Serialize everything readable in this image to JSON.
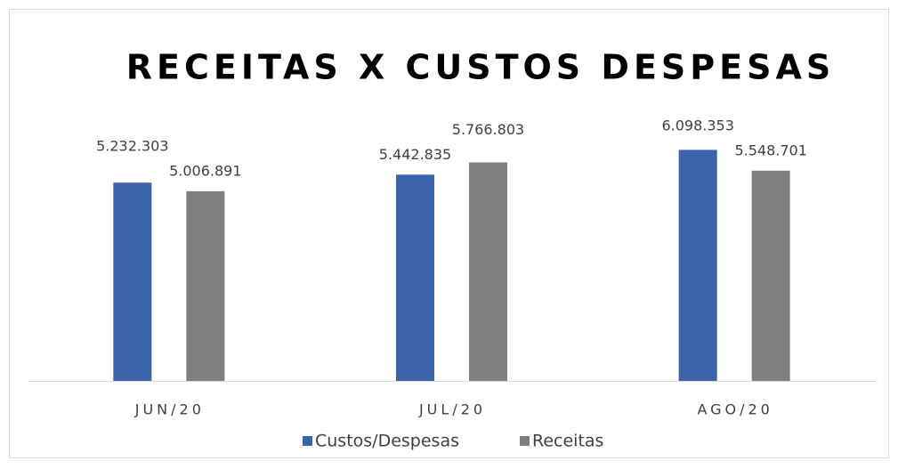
{
  "chart_data": {
    "type": "bar",
    "title": "RECEITAS X CUSTOS DESPESAS",
    "categories": [
      "JUN/20",
      "JUL/20",
      "AGO/20"
    ],
    "series": [
      {
        "name": "Custos/Despesas",
        "color": "#3c64ad",
        "values": [
          5232303,
          5442835,
          6098353
        ],
        "value_labels": [
          "5.232.303",
          "5.442.835",
          "6.098.353"
        ]
      },
      {
        "name": "Receitas",
        "color": "#7f7f7f",
        "values": [
          5006891,
          5766803,
          5548701
        ],
        "value_labels": [
          "5.006.891",
          "5.766.803",
          "5.548.701"
        ]
      }
    ],
    "ylim": [
      0,
      7000000
    ],
    "legend": "bottom"
  }
}
